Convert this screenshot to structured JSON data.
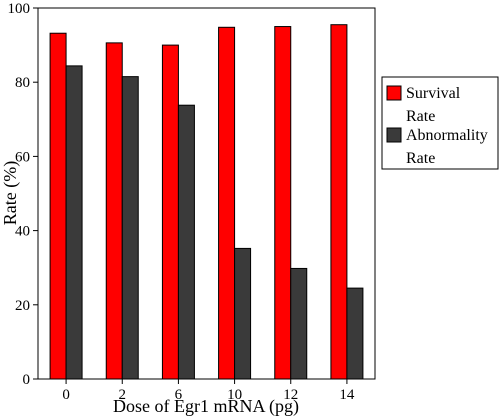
{
  "chart_data": {
    "type": "bar",
    "categories": [
      "0",
      "2",
      "6",
      "10",
      "12",
      "14"
    ],
    "series": [
      {
        "name": "Survival Rate",
        "color": "#ff0000",
        "values": [
          93.2,
          90.6,
          90.0,
          94.8,
          95.0,
          95.5
        ]
      },
      {
        "name": "Abnormality Rate",
        "color": "#3a3a3a",
        "values": [
          84.4,
          81.5,
          73.8,
          35.2,
          29.8,
          24.5
        ]
      }
    ],
    "legend": {
      "position": "right",
      "items": [
        {
          "line1": "Survival",
          "line2": "Rate"
        },
        {
          "line1": "Abnormality",
          "line2": "Rate"
        }
      ]
    },
    "xlabel": "Dose of Egr1 mRNA (pg)",
    "ylabel": "Rate (%)",
    "ylim": [
      0,
      100
    ],
    "yticks": [
      0,
      20,
      40,
      60,
      80,
      100
    ],
    "grid": false
  }
}
